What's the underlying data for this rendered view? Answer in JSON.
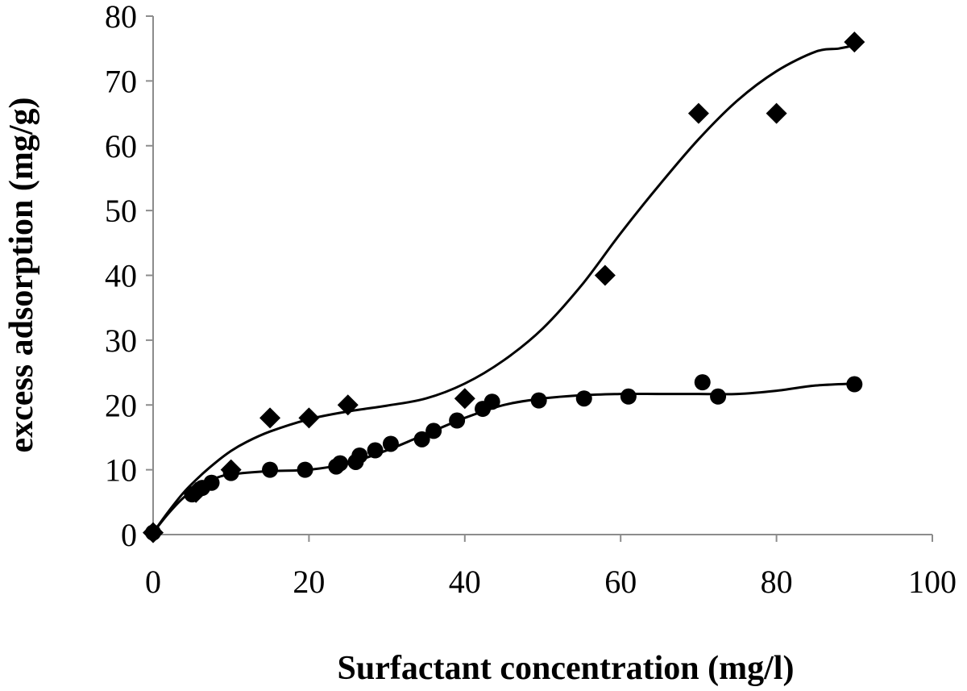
{
  "chart_data": {
    "type": "scatter",
    "title": "",
    "xlabel": "Surfactant concentration (mg/l)",
    "ylabel": "excess adsorption (mg/g)",
    "xlim": [
      0,
      100
    ],
    "ylim": [
      0,
      80
    ],
    "x_ticks": [
      "0",
      "20",
      "40",
      "60",
      "80",
      "100"
    ],
    "y_ticks": [
      "0",
      "10",
      "20",
      "30",
      "40",
      "50",
      "60",
      "70",
      "80"
    ],
    "grid": false,
    "legend": "none",
    "series": [
      {
        "marker": "diamond",
        "color": "#000000",
        "points": [
          [
            0,
            0.3
          ],
          [
            5.5,
            6.5
          ],
          [
            10,
            10
          ],
          [
            15,
            18
          ],
          [
            20,
            18
          ],
          [
            25,
            20
          ],
          [
            40,
            21
          ],
          [
            58,
            40
          ],
          [
            70,
            65
          ],
          [
            80,
            65
          ],
          [
            90,
            76
          ]
        ],
        "fit": [
          [
            0,
            0.3
          ],
          [
            2,
            3.6
          ],
          [
            4,
            6.6
          ],
          [
            6,
            9.0
          ],
          [
            8,
            11.1
          ],
          [
            10,
            12.9
          ],
          [
            12,
            14.3
          ],
          [
            15,
            15.9
          ],
          [
            20,
            17.8
          ],
          [
            25,
            19.0
          ],
          [
            30,
            19.9
          ],
          [
            35,
            21.0
          ],
          [
            40,
            23.3
          ],
          [
            45,
            26.9
          ],
          [
            50,
            31.8
          ],
          [
            55,
            38.5
          ],
          [
            60,
            46.5
          ],
          [
            65,
            54.0
          ],
          [
            70,
            61.0
          ],
          [
            75,
            67.0
          ],
          [
            80,
            71.5
          ],
          [
            85,
            74.5
          ],
          [
            88,
            75.0
          ],
          [
            90,
            75.5
          ]
        ]
      },
      {
        "marker": "circle",
        "color": "#000000",
        "points": [
          [
            0,
            0.3
          ],
          [
            5,
            6.2
          ],
          [
            6.3,
            7.2
          ],
          [
            7.5,
            8
          ],
          [
            10,
            9.5
          ],
          [
            15,
            10
          ],
          [
            19.5,
            10
          ],
          [
            23.5,
            10.5
          ],
          [
            24,
            11
          ],
          [
            26,
            11.2
          ],
          [
            26.5,
            12.2
          ],
          [
            28.5,
            13
          ],
          [
            30.5,
            14
          ],
          [
            34.5,
            14.7
          ],
          [
            36,
            16
          ],
          [
            39,
            17.6
          ],
          [
            42.3,
            19.4
          ],
          [
            43.5,
            20.5
          ],
          [
            49.5,
            20.7
          ],
          [
            55.3,
            21
          ],
          [
            61,
            21.3
          ],
          [
            70.5,
            23.5
          ],
          [
            72.5,
            21.3
          ],
          [
            90,
            23.2
          ]
        ],
        "fit": [
          [
            0,
            0.3
          ],
          [
            2,
            3.3
          ],
          [
            4,
            5.8
          ],
          [
            6,
            7.6
          ],
          [
            8,
            8.7
          ],
          [
            10,
            9.3
          ],
          [
            15,
            9.8
          ],
          [
            20,
            10.0
          ],
          [
            25,
            11.0
          ],
          [
            30,
            13.0
          ],
          [
            35,
            15.5
          ],
          [
            40,
            18.0
          ],
          [
            45,
            20.0
          ],
          [
            50,
            21.0
          ],
          [
            55,
            21.5
          ],
          [
            60,
            21.7
          ],
          [
            65,
            21.7
          ],
          [
            70,
            21.7
          ],
          [
            75,
            21.7
          ],
          [
            80,
            22.2
          ],
          [
            85,
            23.0
          ],
          [
            90,
            23.3
          ]
        ]
      }
    ]
  }
}
